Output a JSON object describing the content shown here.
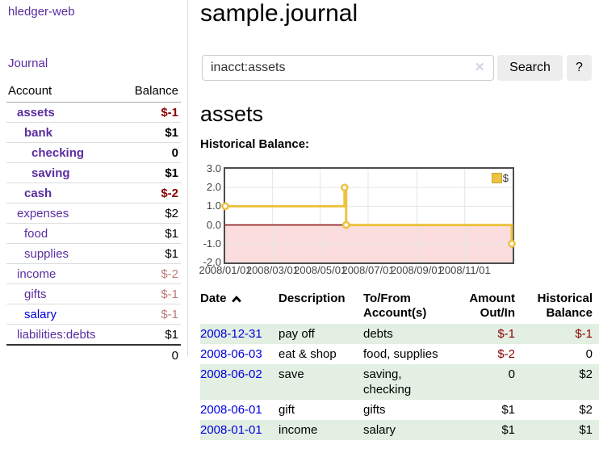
{
  "app": {
    "brand": "hledger-web",
    "nav": {
      "journal": "Journal"
    }
  },
  "colors": {
    "link_purple": "#5b2da0",
    "link_blue": "#0000dd",
    "negative_strong": "#8b0000",
    "negative_soft": "#bd7b7b",
    "row_stripe_green": "#e2efe2"
  },
  "sidebar": {
    "headers": {
      "account": "Account",
      "balance": "Balance"
    },
    "accounts": [
      {
        "account": "assets",
        "depth": 1,
        "account_style": "bold",
        "balance": "$-1",
        "balance_style": "strong-neg"
      },
      {
        "account": "bank",
        "depth": 2,
        "account_style": "bold",
        "balance": "$1",
        "balance_style": "strong"
      },
      {
        "account": "checking",
        "depth": 3,
        "account_style": "bold",
        "balance": "0",
        "balance_style": "strong"
      },
      {
        "account": "saving",
        "depth": 3,
        "account_style": "bold",
        "balance": "$1",
        "balance_style": "strong"
      },
      {
        "account": "cash",
        "depth": 2,
        "account_style": "bold",
        "balance": "$-2",
        "balance_style": "strong-neg"
      },
      {
        "account": "expenses",
        "depth": 1,
        "account_style": "",
        "balance": "$2",
        "balance_style": "plain"
      },
      {
        "account": "food",
        "depth": 2,
        "account_style": "",
        "balance": "$1",
        "balance_style": "plain"
      },
      {
        "account": "supplies",
        "depth": 2,
        "account_style": "",
        "balance": "$1",
        "balance_style": "plain"
      },
      {
        "account": "income",
        "depth": 1,
        "account_style": "",
        "balance": "$-2",
        "balance_style": "soft-neg"
      },
      {
        "account": "gifts",
        "depth": 2,
        "account_style": "",
        "balance": "$-1",
        "balance_style": "soft-neg"
      },
      {
        "account": "salary",
        "depth": 2,
        "account_style": "blue",
        "balance": "$-1",
        "balance_style": "soft-neg"
      },
      {
        "account": "liabilities:debts",
        "depth": 1,
        "account_style": "",
        "balance": "$1",
        "balance_style": "plain"
      }
    ],
    "total": "0"
  },
  "main": {
    "title": "sample.journal",
    "search": {
      "value": "inacct:assets",
      "clear_label": "✕",
      "button_label": "Search",
      "help_label": "?"
    },
    "account_heading": "assets",
    "chart_label": "Historical Balance:"
  },
  "chart_data": {
    "type": "line",
    "title": "Historical Balance:",
    "subtype": "step",
    "legend": {
      "label": "$",
      "position": "top-right"
    },
    "series_color": "#edc240",
    "negative_region_color": "#fbdddd",
    "zero_line_color": "#8b1d1d",
    "grid": true,
    "ylim": [
      -2,
      3
    ],
    "x_domain_days": [
      0,
      366
    ],
    "y_ticks": [
      {
        "label": "3.0",
        "value": 3
      },
      {
        "label": "2.0",
        "value": 2
      },
      {
        "label": "1.0",
        "value": 1
      },
      {
        "label": "0.0",
        "value": 0
      },
      {
        "label": "-1.0",
        "value": -1
      },
      {
        "label": "-2.0",
        "value": -2
      }
    ],
    "x_ticks": [
      {
        "label": "2008/01/01",
        "day": 0
      },
      {
        "label": "2008/03/01",
        "day": 60
      },
      {
        "label": "2008/05/01",
        "day": 121
      },
      {
        "label": "2008/07/01",
        "day": 182
      },
      {
        "label": "2008/09/01",
        "day": 244
      },
      {
        "label": "2008/11/01",
        "day": 305
      }
    ],
    "series": [
      {
        "name": "$",
        "points": [
          {
            "date": "2008-01-01",
            "day": 0,
            "value": 1
          },
          {
            "date": "2008-06-01",
            "day": 152,
            "value": 2
          },
          {
            "date": "2008-06-03",
            "day": 154,
            "value": 0
          },
          {
            "date": "2008-12-31",
            "day": 365,
            "value": -1
          }
        ]
      }
    ]
  },
  "register": {
    "headers": [
      {
        "l1": "Date",
        "l2": ""
      },
      {
        "l1": "Description",
        "l2": ""
      },
      {
        "l1": "To/From",
        "l2": "Account(s)"
      },
      {
        "l1": "Amount",
        "l2": "Out/In"
      },
      {
        "l1": "Historical",
        "l2": "Balance"
      }
    ],
    "rows": [
      {
        "date": "2008-12-31",
        "description": "pay off",
        "accounts": "debts",
        "amount": "$-1",
        "amount_neg": true,
        "balance": "$-1",
        "balance_neg": true
      },
      {
        "date": "2008-06-03",
        "description": "eat & shop",
        "accounts": "food, supplies",
        "amount": "$-2",
        "amount_neg": true,
        "balance": "0",
        "balance_neg": false
      },
      {
        "date": "2008-06-02",
        "description": "save",
        "accounts": "saving, checking",
        "amount": "0",
        "amount_neg": false,
        "balance": "$2",
        "balance_neg": false
      },
      {
        "date": "2008-06-01",
        "description": "gift",
        "accounts": "gifts",
        "amount": "$1",
        "amount_neg": false,
        "balance": "$2",
        "balance_neg": false
      },
      {
        "date": "2008-01-01",
        "description": "income",
        "accounts": "salary",
        "amount": "$1",
        "amount_neg": false,
        "balance": "$1",
        "balance_neg": false
      }
    ]
  }
}
